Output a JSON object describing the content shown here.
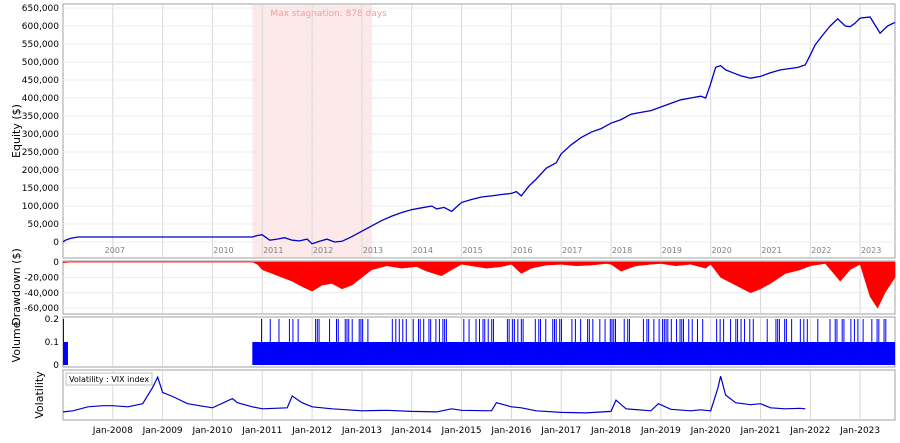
{
  "chart_data": [
    {
      "type": "line",
      "panel": "equity",
      "ylabel": "Equity ($)",
      "ylim": [
        0,
        650000
      ],
      "yticks": [
        0,
        50000,
        100000,
        150000,
        200000,
        250000,
        300000,
        350000,
        400000,
        450000,
        500000,
        550000,
        600000,
        650000
      ],
      "ytick_labels": [
        "0",
        "50,000",
        "100,000",
        "150,000",
        "200,000",
        "250,000",
        "300,000",
        "350,000",
        "400,000",
        "450,000",
        "500,000",
        "550,000",
        "600,000",
        "650,000"
      ],
      "grid": true,
      "line_color": "#0000cc",
      "series": [
        {
          "x": [
            2007.0,
            2007.05,
            2007.15,
            2007.3,
            2008.0,
            2009.0,
            2010.0,
            2010.8,
            2010.9,
            2011.0,
            2011.15,
            2011.3,
            2011.45,
            2011.6,
            2011.75,
            2011.9,
            2012.0,
            2012.15,
            2012.3,
            2012.45,
            2012.6,
            2012.8,
            2013.0,
            2013.2,
            2013.4,
            2013.6,
            2013.8,
            2014.0,
            2014.2,
            2014.4,
            2014.5,
            2014.65,
            2014.8,
            2015.0,
            2015.2,
            2015.4,
            2015.6,
            2015.8,
            2016.0,
            2016.1,
            2016.2,
            2016.35,
            2016.5,
            2016.7,
            2016.9,
            2017.0,
            2017.2,
            2017.4,
            2017.6,
            2017.8,
            2018.0,
            2018.2,
            2018.4,
            2018.6,
            2018.8,
            2019.0,
            2019.2,
            2019.4,
            2019.6,
            2019.8,
            2019.9,
            2020.0,
            2020.1,
            2020.2,
            2020.3,
            2020.45,
            2020.6,
            2020.8,
            2021.0,
            2021.2,
            2021.4,
            2021.6,
            2021.75,
            2021.9,
            2022.0,
            2022.1,
            2022.25,
            2022.4,
            2022.55,
            2022.7,
            2022.8,
            2022.9,
            2023.0,
            2023.2,
            2023.4,
            2023.55,
            2023.7
          ],
          "y": [
            0,
            5000,
            10000,
            14000,
            14000,
            14000,
            14000,
            14000,
            18000,
            20000,
            5000,
            8000,
            12000,
            5000,
            3000,
            8000,
            -5000,
            2000,
            8000,
            0,
            2000,
            15000,
            30000,
            45000,
            60000,
            72000,
            82000,
            90000,
            95000,
            100000,
            92000,
            96000,
            85000,
            110000,
            118000,
            125000,
            128000,
            132000,
            135000,
            140000,
            128000,
            155000,
            175000,
            205000,
            220000,
            245000,
            270000,
            290000,
            305000,
            315000,
            330000,
            340000,
            355000,
            360000,
            365000,
            375000,
            385000,
            395000,
            400000,
            405000,
            400000,
            440000,
            485000,
            490000,
            478000,
            470000,
            462000,
            455000,
            460000,
            470000,
            478000,
            482000,
            485000,
            492000,
            520000,
            548000,
            575000,
            600000,
            620000,
            600000,
            598000,
            608000,
            622000,
            625000,
            580000,
            600000,
            610000
          ]
        }
      ],
      "year_labels": [
        "2007",
        "2010",
        "2011",
        "2012",
        "2013",
        "2014",
        "2015",
        "2016",
        "2017",
        "2018",
        "2019",
        "2020",
        "2021",
        "2022",
        "2023"
      ],
      "annotation": {
        "text": "Max stagnation: 878 days",
        "x_start": 2010.8,
        "x_end": 2013.2,
        "color": "#fde9e9"
      }
    },
    {
      "type": "area",
      "panel": "drawdown",
      "ylabel": "Drawdown ($)",
      "ylim": [
        -65000,
        0
      ],
      "yticks": [
        0,
        -20000,
        -40000,
        -60000
      ],
      "ytick_labels": [
        "0",
        "-20,000",
        "-40,000",
        "-60,000"
      ],
      "fill_color": "#ff0000",
      "series": [
        {
          "x": [
            2007.0,
            2007.15,
            2010.8,
            2010.9,
            2011.0,
            2011.2,
            2011.4,
            2011.6,
            2011.8,
            2012.0,
            2012.2,
            2012.4,
            2012.6,
            2012.8,
            2013.0,
            2013.2,
            2013.5,
            2013.8,
            2014.1,
            2014.3,
            2014.6,
            2014.8,
            2015.0,
            2015.2,
            2015.5,
            2015.8,
            2016.0,
            2016.2,
            2016.4,
            2016.7,
            2017.0,
            2017.3,
            2017.6,
            2017.9,
            2018.0,
            2018.2,
            2018.5,
            2018.8,
            2019.0,
            2019.3,
            2019.6,
            2019.9,
            2020.0,
            2020.2,
            2020.5,
            2020.8,
            2021.0,
            2021.2,
            2021.5,
            2021.8,
            2022.0,
            2022.3,
            2022.6,
            2022.8,
            2023.0,
            2023.2,
            2023.35,
            2023.5,
            2023.7
          ],
          "y": [
            -1000,
            0,
            0,
            -3000,
            -10000,
            -15000,
            -20000,
            -25000,
            -32000,
            -38000,
            -30000,
            -28000,
            -35000,
            -30000,
            -20000,
            -10000,
            -5000,
            -8000,
            -6000,
            -12000,
            -18000,
            -10000,
            -3000,
            -5000,
            -8000,
            -6000,
            -3000,
            -15000,
            -8000,
            -4000,
            -3000,
            -5000,
            -4000,
            -2000,
            -3000,
            -12000,
            -5000,
            -3000,
            -2000,
            -5000,
            -3000,
            -8000,
            -3000,
            -20000,
            -30000,
            -40000,
            -35000,
            -28000,
            -15000,
            -10000,
            -5000,
            -2000,
            -25000,
            -10000,
            -3000,
            -45000,
            -60000,
            -40000,
            -20000
          ]
        }
      ]
    },
    {
      "type": "bar",
      "panel": "volume",
      "ylabel": "Volume",
      "ylim": [
        0,
        0.2
      ],
      "yticks": [
        0,
        0.1,
        0.2
      ],
      "ytick_labels": [
        "0",
        "0.1",
        "0.2"
      ],
      "bar_color": "#0000ff",
      "series": [
        {
          "name": "",
          "x_start": 2007.0,
          "x_end": 2023.7,
          "base_value": 0.1,
          "high_value": 0.2,
          "active_ranges": [
            [
              2007.0,
              2007.1
            ],
            [
              2010.8,
              2023.7
            ]
          ]
        }
      ]
    },
    {
      "type": "line",
      "panel": "volatility",
      "ylabel": "Volatility",
      "legend": "Volatility : VIX index",
      "ylim": [
        0,
        90
      ],
      "line_color": "#0000cc",
      "x_tick_labels": [
        "Jan-2008",
        "Jan-2009",
        "Jan-2010",
        "Jan-2011",
        "Jan-2012",
        "Jan-2013",
        "Jan-2014",
        "Jan-2015",
        "Jan-2016",
        "Jan-2017",
        "Jan-2018",
        "Jan-2019",
        "Jan-2020",
        "Jan-2021",
        "Jan-2022",
        "Jan-2023"
      ],
      "x_tick_values": [
        2008.0,
        2009.0,
        2010.0,
        2011.0,
        2012.0,
        2013.0,
        2014.0,
        2015.0,
        2016.0,
        2017.0,
        2018.0,
        2019.0,
        2020.0,
        2021.0,
        2022.0,
        2023.0
      ],
      "series": [
        {
          "x": [
            2007.0,
            2007.2,
            2007.5,
            2007.8,
            2008.0,
            2008.3,
            2008.6,
            2008.8,
            2008.9,
            2009.0,
            2009.2,
            2009.5,
            2009.8,
            2010.0,
            2010.4,
            2010.5,
            2010.8,
            2011.0,
            2011.5,
            2011.6,
            2011.8,
            2012.0,
            2012.4,
            2012.7,
            2013.0,
            2013.5,
            2014.0,
            2014.5,
            2014.8,
            2015.0,
            2015.6,
            2015.7,
            2016.0,
            2016.2,
            2016.5,
            2017.0,
            2017.5,
            2018.0,
            2018.1,
            2018.3,
            2018.8,
            2018.95,
            2019.2,
            2019.6,
            2019.8,
            2020.0,
            2020.15,
            2020.2,
            2020.3,
            2020.5,
            2020.8,
            2021.0,
            2021.2,
            2021.5,
            2021.8,
            2021.9
          ],
          "y": [
            12,
            14,
            22,
            24,
            24,
            22,
            28,
            60,
            80,
            50,
            42,
            28,
            23,
            20,
            38,
            30,
            22,
            18,
            20,
            43,
            30,
            22,
            18,
            16,
            14,
            15,
            13,
            12,
            18,
            15,
            14,
            30,
            22,
            20,
            14,
            11,
            10,
            13,
            35,
            18,
            14,
            28,
            17,
            14,
            16,
            14,
            60,
            82,
            45,
            30,
            26,
            28,
            20,
            18,
            19,
            18
          ]
        }
      ]
    }
  ]
}
